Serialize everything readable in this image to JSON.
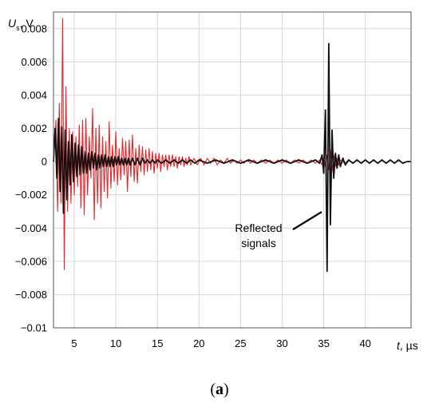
{
  "chart_data": {
    "type": "line",
    "ylabel": {
      "symbol": "U",
      "subscript": "s",
      "unit": ", V"
    },
    "xlabel": {
      "symbol": "t",
      "unit": ", µs"
    },
    "xlim": [
      2.5,
      45.5
    ],
    "ylim": [
      -0.01,
      0.009
    ],
    "xticks": [
      5,
      10,
      15,
      20,
      25,
      30,
      35,
      40
    ],
    "yticks": [
      -0.01,
      -0.008,
      -0.006,
      -0.004,
      -0.002,
      0,
      0.002,
      0.004,
      0.006,
      0.008
    ],
    "ytick_labels": [
      "−0.01",
      "−0.008",
      "−0.006",
      "−0.004",
      "−0.002",
      "0",
      "0.002",
      "0.004",
      "0.006",
      "0.008"
    ],
    "grid": true,
    "annotation": {
      "lines": [
        "Reflected",
        "signals"
      ],
      "points_to": [
        35.2,
        -0.002
      ]
    },
    "caption": {
      "open": "(",
      "letter": "a",
      "close": ")"
    },
    "series": [
      {
        "color": "#e8262a",
        "points": [
          [
            2.5,
            0
          ],
          [
            2.8,
            0.0025
          ],
          [
            3.0,
            -0.003
          ],
          [
            3.2,
            0.0035
          ],
          [
            3.4,
            -0.0025
          ],
          [
            3.6,
            0.0086
          ],
          [
            3.8,
            -0.0065
          ],
          [
            4.0,
            0.0045
          ],
          [
            4.2,
            -0.003
          ],
          [
            4.4,
            0.002
          ],
          [
            4.6,
            -0.0025
          ],
          [
            4.8,
            0.0018
          ],
          [
            5.0,
            -0.002
          ],
          [
            5.2,
            0.0015
          ],
          [
            5.4,
            -0.0015
          ],
          [
            5.6,
            0.0022
          ],
          [
            5.8,
            -0.0028
          ],
          [
            6.0,
            0.0025
          ],
          [
            6.2,
            -0.0032
          ],
          [
            6.4,
            0.0026
          ],
          [
            6.6,
            -0.002
          ],
          [
            6.8,
            0.0015
          ],
          [
            7.0,
            -0.001
          ],
          [
            7.2,
            0.0032
          ],
          [
            7.4,
            -0.0035
          ],
          [
            7.6,
            0.002
          ],
          [
            7.8,
            -0.0025
          ],
          [
            8.0,
            0.0022
          ],
          [
            8.2,
            -0.0028
          ],
          [
            8.4,
            0.0015
          ],
          [
            8.6,
            -0.0018
          ],
          [
            8.8,
            0.0012
          ],
          [
            9.0,
            -0.0022
          ],
          [
            9.2,
            0.0024
          ],
          [
            9.4,
            -0.0016
          ],
          [
            9.6,
            0.001
          ],
          [
            9.8,
            -0.0012
          ],
          [
            10.0,
            0.0018
          ],
          [
            10.2,
            -0.0014
          ],
          [
            10.4,
            0.0008
          ],
          [
            10.6,
            -0.0011
          ],
          [
            10.8,
            0.0014
          ],
          [
            11.0,
            -0.0008
          ],
          [
            11.2,
            0.0012
          ],
          [
            11.4,
            -0.0018
          ],
          [
            11.6,
            0.0013
          ],
          [
            11.8,
            -0.0009
          ],
          [
            12.0,
            0.0016
          ],
          [
            12.2,
            -0.0012
          ],
          [
            12.4,
            0.0008
          ],
          [
            12.6,
            -0.0013
          ],
          [
            12.8,
            0.001
          ],
          [
            13.0,
            -0.0006
          ],
          [
            13.2,
            0.0009
          ],
          [
            13.4,
            -0.0008
          ],
          [
            13.6,
            0.0007
          ],
          [
            13.8,
            -0.0006
          ],
          [
            14.0,
            0.0008
          ],
          [
            14.2,
            -0.0005
          ],
          [
            14.4,
            0.0006
          ],
          [
            14.6,
            -0.0007
          ],
          [
            14.8,
            0.0005
          ],
          [
            15.0,
            -0.0004
          ],
          [
            15.2,
            0.0005
          ],
          [
            15.4,
            -0.0006
          ],
          [
            15.6,
            0.0004
          ],
          [
            15.8,
            -0.0003
          ],
          [
            16.0,
            0.0004
          ],
          [
            16.2,
            -0.0005
          ],
          [
            16.4,
            0.0004
          ],
          [
            16.6,
            -0.0003
          ],
          [
            16.8,
            0.0004
          ],
          [
            17.0,
            -0.0003
          ],
          [
            17.2,
            0.0003
          ],
          [
            17.4,
            -0.0004
          ],
          [
            17.6,
            0.0003
          ],
          [
            17.8,
            -0.0002
          ],
          [
            18.0,
            0.0003
          ],
          [
            18.2,
            -0.0003
          ],
          [
            18.4,
            0.0002
          ],
          [
            18.6,
            -0.0002
          ],
          [
            18.8,
            0.0003
          ],
          [
            19.0,
            -0.0002
          ],
          [
            19.4,
            0.0002
          ],
          [
            19.8,
            -0.0002
          ],
          [
            20.2,
            0.0002
          ],
          [
            20.6,
            -0.0002
          ],
          [
            21.0,
            0.0002
          ],
          [
            21.4,
            -0.0001
          ],
          [
            21.8,
            0.0002
          ],
          [
            22.2,
            -0.0002
          ],
          [
            22.6,
            0.0001
          ],
          [
            23.0,
            -0.0001
          ],
          [
            23.4,
            0.0002
          ],
          [
            23.8,
            -0.0001
          ],
          [
            24.2,
            0.0001
          ],
          [
            24.6,
            -0.0001
          ],
          [
            25.0,
            0.0001
          ],
          [
            25.4,
            -0.0001
          ],
          [
            25.8,
            0.0001
          ],
          [
            26.2,
            -0.0001
          ],
          [
            26.6,
            0.0001
          ],
          [
            27.0,
            -0.0001
          ],
          [
            27.5,
            0.0001
          ],
          [
            28.0,
            -0.0001
          ],
          [
            28.5,
            0.0001
          ],
          [
            29.0,
            -0.0001
          ],
          [
            29.5,
            0.0001
          ],
          [
            30.0,
            -0.0001
          ],
          [
            30.5,
            0.0001
          ],
          [
            31.0,
            -0.0001
          ],
          [
            31.5,
            0.0001
          ],
          [
            32.0,
            -0.0001
          ],
          [
            32.5,
            0.0001
          ],
          [
            33.0,
            -0.0001
          ],
          [
            33.5,
            0.0001
          ],
          [
            34.0,
            -0.0001
          ],
          [
            34.5,
            0.0001
          ],
          [
            34.8,
            -0.0002
          ],
          [
            35.0,
            0.0002
          ],
          [
            35.2,
            -0.0003
          ],
          [
            35.4,
            0.0004
          ],
          [
            35.6,
            -0.0005
          ],
          [
            35.8,
            0.0007
          ],
          [
            36.0,
            -0.0006
          ],
          [
            36.2,
            0.0004
          ],
          [
            36.4,
            -0.0003
          ],
          [
            36.6,
            0.0002
          ],
          [
            36.8,
            -0.0002
          ],
          [
            37.0,
            0.0001
          ],
          [
            37.5,
            -0.0001
          ],
          [
            38.0,
            0.0001
          ],
          [
            38.5,
            -0.0001
          ],
          [
            39.0,
            0.0001
          ],
          [
            39.5,
            -0.0001
          ],
          [
            40.0,
            0.0001
          ],
          [
            40.5,
            -0.0001
          ],
          [
            41.0,
            0.0001
          ],
          [
            41.5,
            -0.0001
          ],
          [
            42.0,
            0.0001
          ],
          [
            42.5,
            -0.0001
          ],
          [
            43.0,
            0.0001
          ],
          [
            43.5,
            -0.0001
          ],
          [
            44.0,
            0.0001
          ],
          [
            44.5,
            -0.0001
          ],
          [
            45.0,
            0.0
          ],
          [
            45.5,
            0.0
          ]
        ]
      },
      {
        "color": "#111111",
        "points": [
          [
            2.5,
            0
          ],
          [
            2.7,
            0.002
          ],
          [
            2.9,
            -0.001
          ],
          [
            3.1,
            0.0026
          ],
          [
            3.3,
            -0.0018
          ],
          [
            3.5,
            0.0021
          ],
          [
            3.7,
            -0.0031
          ],
          [
            3.9,
            0.0019
          ],
          [
            4.1,
            -0.0023
          ],
          [
            4.3,
            0.0012
          ],
          [
            4.5,
            -0.0014
          ],
          [
            4.7,
            0.0016
          ],
          [
            4.9,
            -0.0012
          ],
          [
            5.1,
            0.0011
          ],
          [
            5.3,
            -0.0009
          ],
          [
            5.5,
            0.001
          ],
          [
            5.7,
            -0.0008
          ],
          [
            5.9,
            0.0009
          ],
          [
            6.1,
            -0.0007
          ],
          [
            6.3,
            0.0006
          ],
          [
            6.5,
            -0.0007
          ],
          [
            6.7,
            0.0005
          ],
          [
            6.9,
            -0.0005
          ],
          [
            7.1,
            0.0006
          ],
          [
            7.3,
            -0.0004
          ],
          [
            7.5,
            0.0005
          ],
          [
            7.7,
            -0.0005
          ],
          [
            7.9,
            0.0004
          ],
          [
            8.1,
            -0.0004
          ],
          [
            8.3,
            0.0004
          ],
          [
            8.5,
            -0.0003
          ],
          [
            8.7,
            0.0004
          ],
          [
            8.9,
            -0.0003
          ],
          [
            9.1,
            0.0003
          ],
          [
            9.3,
            -0.0003
          ],
          [
            9.5,
            0.0003
          ],
          [
            9.7,
            -0.0003
          ],
          [
            9.9,
            0.0003
          ],
          [
            10.1,
            -0.0002
          ],
          [
            10.3,
            0.0003
          ],
          [
            10.5,
            -0.0002
          ],
          [
            10.7,
            0.0002
          ],
          [
            10.9,
            -0.0002
          ],
          [
            11.1,
            0.0002
          ],
          [
            11.3,
            -0.0002
          ],
          [
            11.5,
            0.0002
          ],
          [
            11.7,
            -0.0002
          ],
          [
            12.0,
            0.0002
          ],
          [
            12.3,
            -0.0002
          ],
          [
            12.6,
            0.0002
          ],
          [
            12.9,
            -0.0002
          ],
          [
            13.2,
            0.0002
          ],
          [
            13.5,
            -0.0001
          ],
          [
            13.8,
            0.0001
          ],
          [
            14.1,
            -0.0001
          ],
          [
            14.4,
            0.0001
          ],
          [
            14.7,
            -0.0001
          ],
          [
            15.0,
            0.0001
          ],
          [
            15.5,
            -0.0001
          ],
          [
            16.0,
            0.0001
          ],
          [
            16.5,
            -0.0001
          ],
          [
            17.0,
            0.0001
          ],
          [
            17.5,
            -0.0001
          ],
          [
            18.0,
            0.0001
          ],
          [
            18.5,
            -0.0001
          ],
          [
            19.0,
            0.0001
          ],
          [
            19.5,
            -0.0001
          ],
          [
            20.0,
            0.0001
          ],
          [
            21.0,
            -0.0001
          ],
          [
            22.0,
            0.0001
          ],
          [
            23.0,
            -0.0001
          ],
          [
            24.0,
            0.0001
          ],
          [
            25.0,
            -0.0001
          ],
          [
            26.0,
            0.0001
          ],
          [
            27.0,
            -0.0001
          ],
          [
            28.0,
            0.0001
          ],
          [
            29.0,
            -0.0001
          ],
          [
            30.0,
            0.0001
          ],
          [
            31.0,
            -0.0001
          ],
          [
            32.0,
            0.0001
          ],
          [
            33.0,
            -0.0001
          ],
          [
            34.0,
            0.0001
          ],
          [
            34.5,
            -0.0001
          ],
          [
            34.8,
            0.0004
          ],
          [
            35.0,
            -0.0007
          ],
          [
            35.2,
            0.0031
          ],
          [
            35.4,
            -0.0066
          ],
          [
            35.6,
            0.0071
          ],
          [
            35.8,
            -0.0038
          ],
          [
            36.0,
            0.0019
          ],
          [
            36.2,
            -0.001
          ],
          [
            36.4,
            0.0005
          ],
          [
            36.6,
            -0.0004
          ],
          [
            36.8,
            0.0004
          ],
          [
            37.0,
            -0.0003
          ],
          [
            37.3,
            0.0002
          ],
          [
            37.6,
            -0.0002
          ],
          [
            38.0,
            0.0001
          ],
          [
            38.5,
            -0.0001
          ],
          [
            39.0,
            0.0001
          ],
          [
            39.5,
            -0.0001
          ],
          [
            40.0,
            0.0001
          ],
          [
            40.5,
            -0.0001
          ],
          [
            41.0,
            0.0001
          ],
          [
            41.5,
            -0.0001
          ],
          [
            42.0,
            0.0001
          ],
          [
            42.5,
            -0.0001
          ],
          [
            43.0,
            0.0001
          ],
          [
            43.5,
            -0.0001
          ],
          [
            44.0,
            0.0001
          ],
          [
            44.5,
            -0.0001
          ],
          [
            45.0,
            0.0
          ],
          [
            45.5,
            0.0
          ]
        ]
      }
    ]
  }
}
